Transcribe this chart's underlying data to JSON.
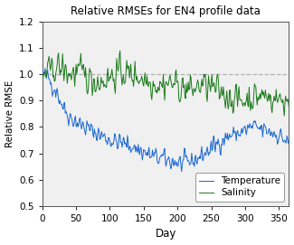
{
  "title": "Relative RMSEs for EN4 profile data",
  "xlabel": "Day",
  "ylabel": "Relative RMSE",
  "xlim": [
    0,
    365
  ],
  "ylim": [
    0.5,
    1.2
  ],
  "yticks": [
    0.5,
    0.6,
    0.7,
    0.8,
    0.9,
    1.0,
    1.1,
    1.2
  ],
  "xticks": [
    0,
    50,
    100,
    150,
    200,
    250,
    300,
    350
  ],
  "dashed_line_y": 1.0,
  "temp_color": "#1666d4",
  "sal_color": "#1a7a1a",
  "legend_labels": [
    "Temperature",
    "Salinity"
  ],
  "seed": 42,
  "n_days": 365,
  "bg_color": "#f0f0f0",
  "temp_control_x": [
    1,
    10,
    20,
    30,
    40,
    55,
    70,
    85,
    100,
    115,
    130,
    145,
    160,
    175,
    190,
    205,
    220,
    235,
    250,
    265,
    280,
    295,
    310,
    325,
    340,
    355,
    365
  ],
  "temp_control_y": [
    1.0,
    0.98,
    0.94,
    0.88,
    0.84,
    0.81,
    0.79,
    0.77,
    0.75,
    0.74,
    0.73,
    0.71,
    0.69,
    0.68,
    0.67,
    0.66,
    0.67,
    0.69,
    0.72,
    0.75,
    0.77,
    0.78,
    0.8,
    0.79,
    0.78,
    0.76,
    0.73
  ],
  "sal_control_x": [
    1,
    10,
    20,
    30,
    40,
    55,
    70,
    85,
    100,
    115,
    130,
    145,
    160,
    175,
    190,
    205,
    220,
    235,
    250,
    265,
    280,
    295,
    310,
    325,
    340,
    355,
    365
  ],
  "sal_control_y": [
    1.0,
    1.01,
    1.03,
    1.02,
    1.0,
    1.01,
    0.98,
    0.97,
    0.99,
    1.01,
    1.0,
    0.99,
    0.97,
    0.96,
    0.97,
    0.95,
    0.94,
    0.96,
    0.95,
    0.93,
    0.91,
    0.9,
    0.91,
    0.92,
    0.91,
    0.9,
    0.9
  ],
  "temp_noise_scale": 0.025,
  "sal_noise_scale": 0.038
}
